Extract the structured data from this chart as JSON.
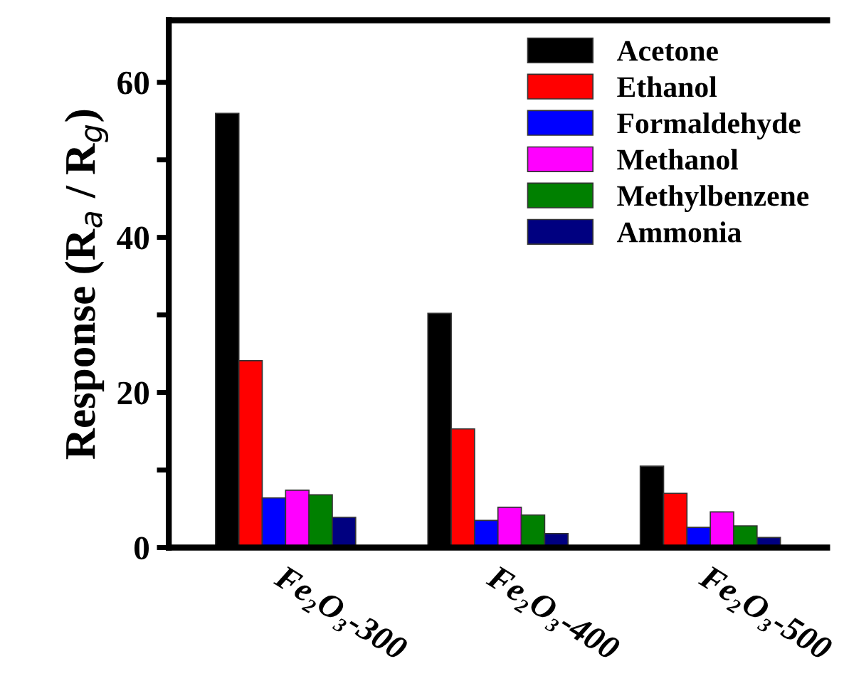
{
  "chart_data": {
    "type": "bar",
    "ylabel": "Response (R$_{a}$ / R$_{g}$)",
    "categories": [
      "Fe₂O₃-300",
      "Fe₂O₃-400",
      "Fe₂O₃-500"
    ],
    "series": [
      {
        "name": "Acetone",
        "color": "#000000",
        "values": [
          56,
          30.2,
          10.5
        ]
      },
      {
        "name": "Ethanol",
        "color": "#ff0000",
        "values": [
          24.1,
          15.3,
          7.0
        ]
      },
      {
        "name": "Formaldehyde",
        "color": "#0000ff",
        "values": [
          6.4,
          3.5,
          2.6
        ]
      },
      {
        "name": "Methanol",
        "color": "#ff00ff",
        "values": [
          7.4,
          5.2,
          4.6
        ]
      },
      {
        "name": "Methylbenzene",
        "color": "#008000",
        "values": [
          6.8,
          4.2,
          2.8
        ]
      },
      {
        "name": "Ammonia",
        "color": "#000080",
        "values": [
          3.9,
          1.8,
          1.3
        ]
      }
    ],
    "ylim": [
      0,
      68
    ],
    "yticks": [
      0,
      {
        "value": 10,
        "label": null
      },
      20,
      {
        "value": 30,
        "label": null
      },
      40,
      {
        "value": 50,
        "label": null
      },
      60
    ],
    "legend": "top right",
    "grid": false
  }
}
